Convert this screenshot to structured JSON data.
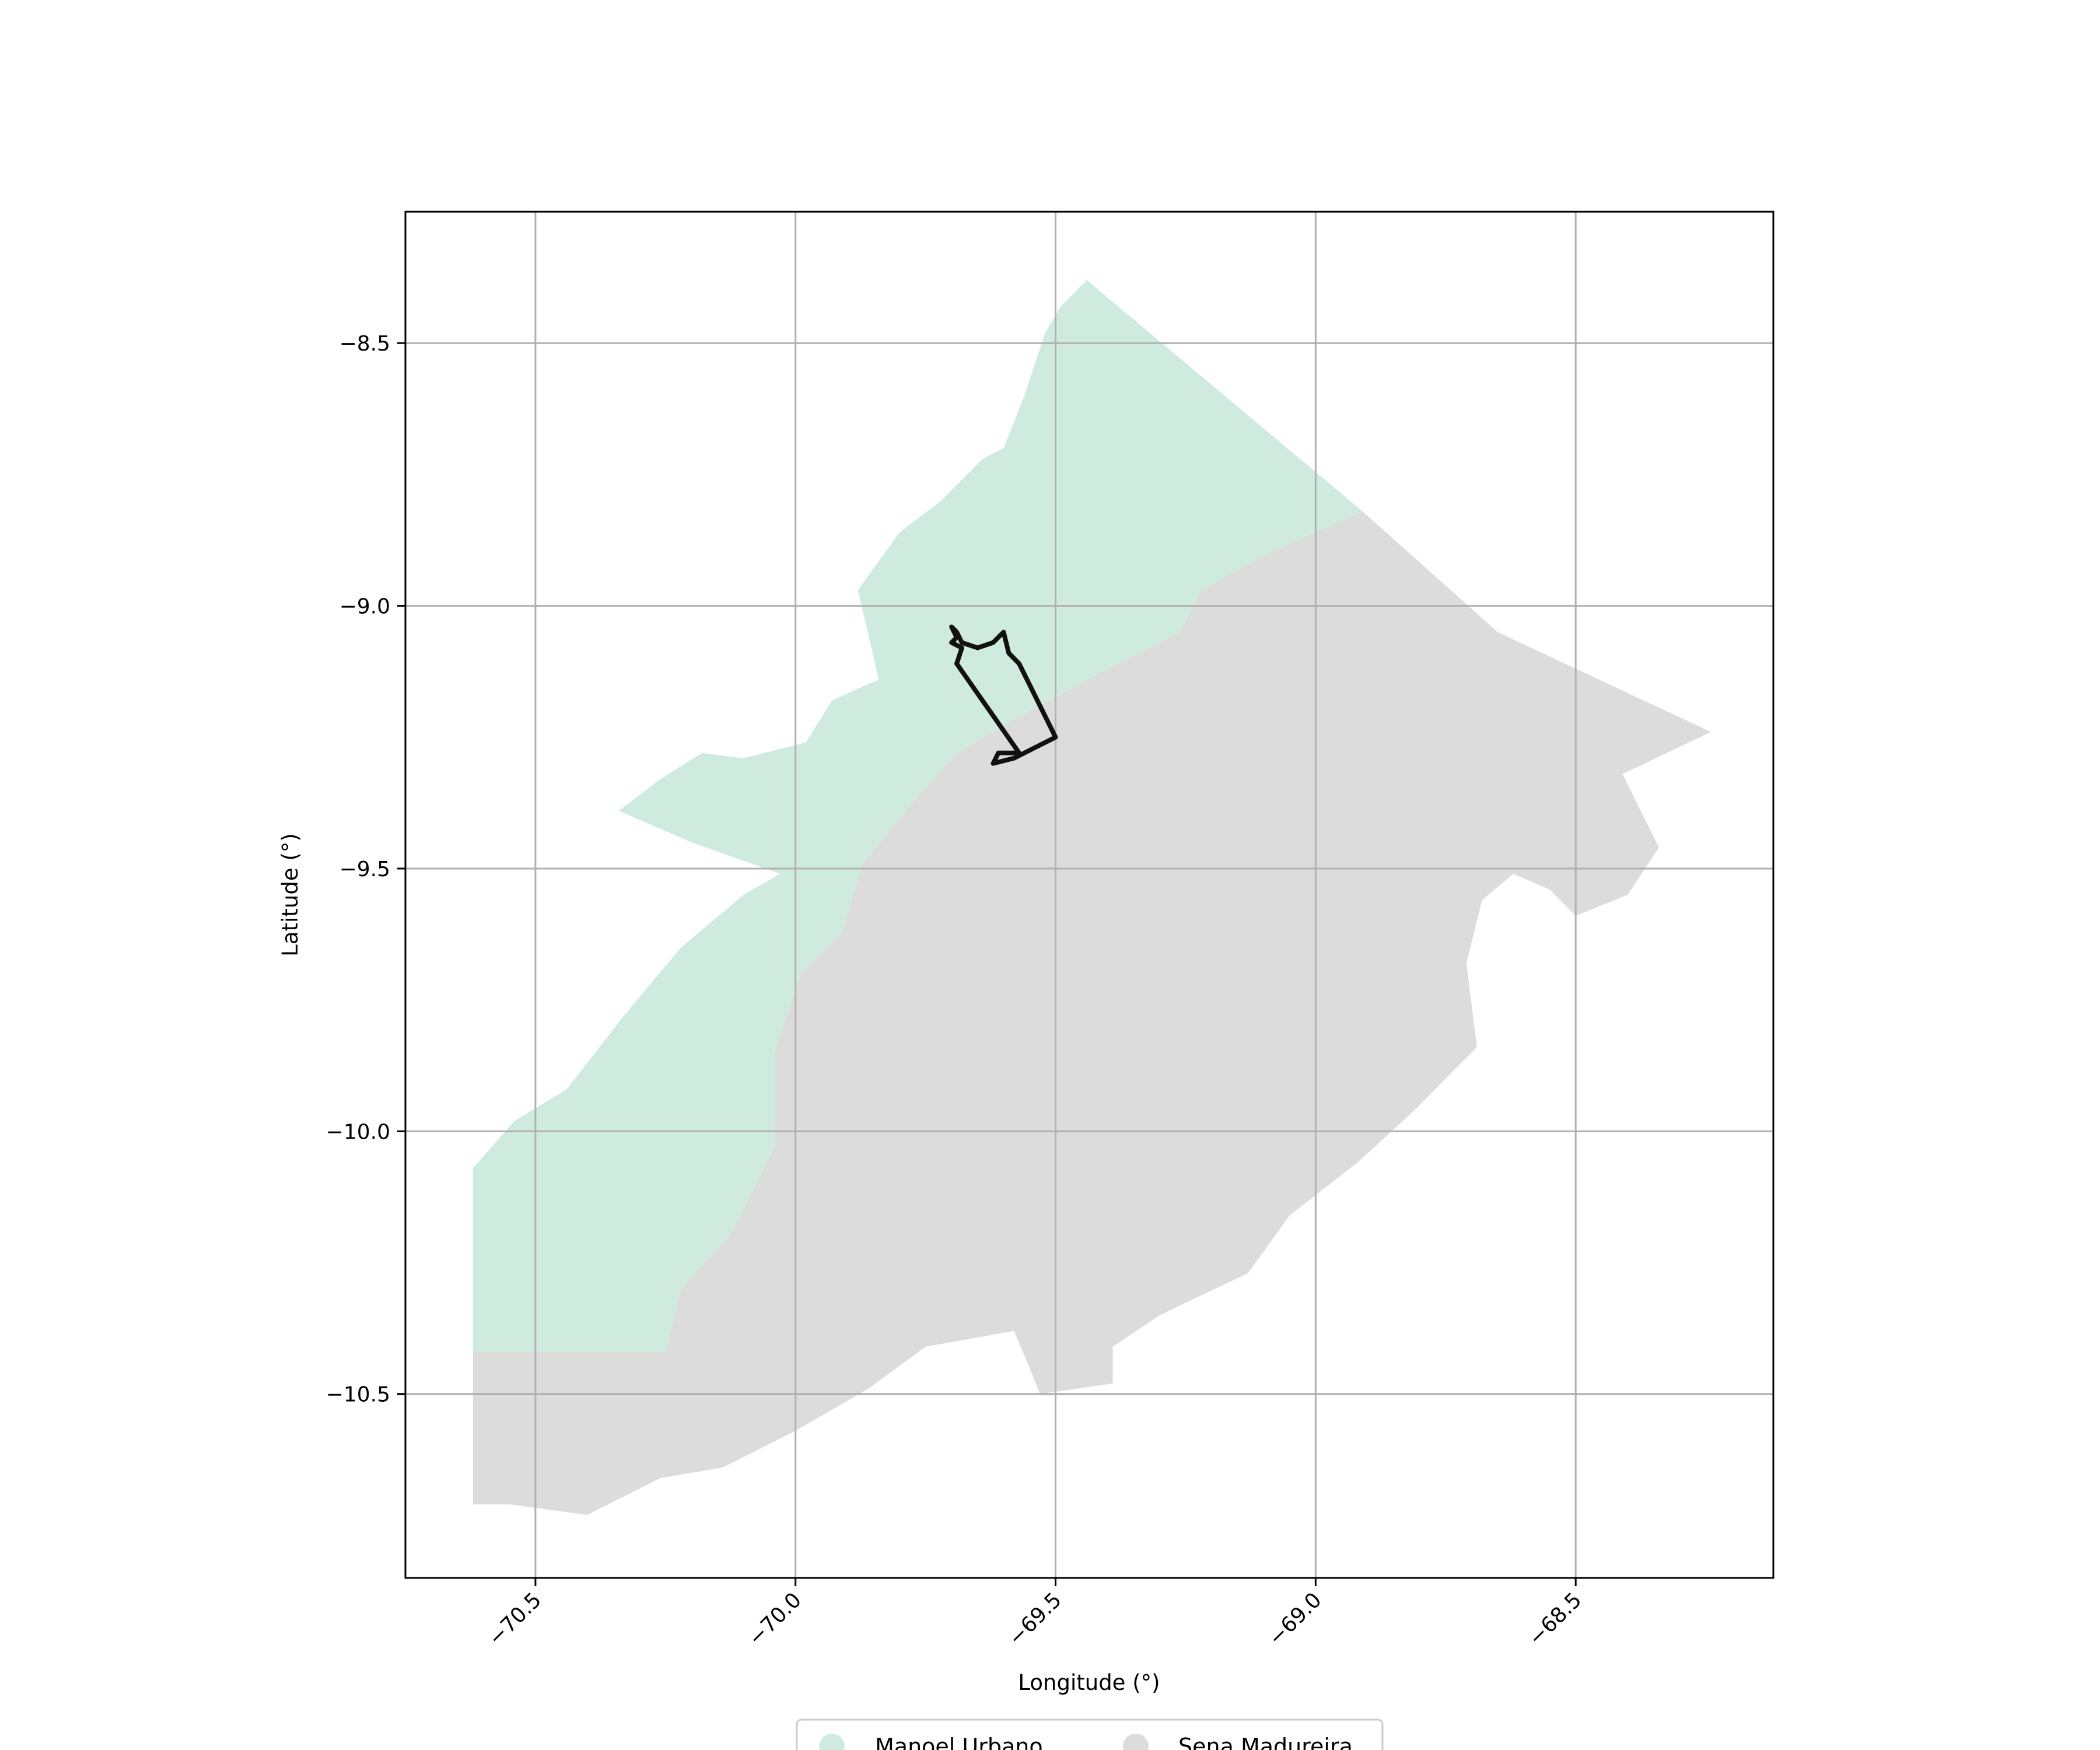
{
  "chart_data": {
    "type": "map",
    "xlabel": "Longitude (°)",
    "ylabel": "Latitude (°)",
    "xlim": [
      -70.75,
      -68.12
    ],
    "ylim": [
      -10.85,
      -8.25
    ],
    "x_ticks": [
      {
        "value": -70.5,
        "label": "−70.5"
      },
      {
        "value": -70.0,
        "label": "−70.0"
      },
      {
        "value": -69.5,
        "label": "−69.5"
      },
      {
        "value": -69.0,
        "label": "−69.0"
      },
      {
        "value": -68.5,
        "label": "−68.5"
      }
    ],
    "y_ticks": [
      {
        "value": -8.5,
        "label": "−8.5"
      },
      {
        "value": -9.0,
        "label": "−9.0"
      },
      {
        "value": -9.5,
        "label": "−9.5"
      },
      {
        "value": -10.0,
        "label": "−10.0"
      },
      {
        "value": -10.5,
        "label": "−10.5"
      }
    ],
    "grid": true,
    "legend_position": "bottom-center",
    "regions": [
      {
        "name": "Manoel Urbano",
        "color": "#cfebdf",
        "coordinates": [
          [
            -69.44,
            -8.38
          ],
          [
            -69.49,
            -8.43
          ],
          [
            -69.52,
            -8.48
          ],
          [
            -69.56,
            -8.6
          ],
          [
            -69.6,
            -8.7
          ],
          [
            -69.64,
            -8.72
          ],
          [
            -69.72,
            -8.8
          ],
          [
            -69.8,
            -8.86
          ],
          [
            -69.88,
            -8.97
          ],
          [
            -69.84,
            -9.14
          ],
          [
            -69.93,
            -9.18
          ],
          [
            -69.98,
            -9.26
          ],
          [
            -70.1,
            -9.29
          ],
          [
            -70.18,
            -9.28
          ],
          [
            -70.26,
            -9.33
          ],
          [
            -70.34,
            -9.39
          ],
          [
            -70.2,
            -9.45
          ],
          [
            -70.03,
            -9.51
          ],
          [
            -70.1,
            -9.55
          ],
          [
            -70.22,
            -9.65
          ],
          [
            -70.33,
            -9.78
          ],
          [
            -70.44,
            -9.92
          ],
          [
            -70.54,
            -9.98
          ],
          [
            -70.62,
            -10.07
          ],
          [
            -70.62,
            -10.42
          ],
          [
            -70.25,
            -10.42
          ],
          [
            -70.22,
            -10.3
          ],
          [
            -70.12,
            -10.19
          ],
          [
            -70.04,
            -10.03
          ],
          [
            -70.04,
            -9.85
          ],
          [
            -69.99,
            -9.7
          ],
          [
            -69.91,
            -9.62
          ],
          [
            -69.87,
            -9.49
          ],
          [
            -69.78,
            -9.38
          ],
          [
            -69.69,
            -9.28
          ],
          [
            -69.55,
            -9.2
          ],
          [
            -69.4,
            -9.12
          ],
          [
            -69.26,
            -9.05
          ],
          [
            -69.22,
            -8.97
          ],
          [
            -69.09,
            -8.9
          ],
          [
            -68.91,
            -8.82
          ]
        ]
      },
      {
        "name": "Sena Madureira",
        "color": "#dcdcdc",
        "coordinates": [
          [
            -68.91,
            -8.82
          ],
          [
            -68.65,
            -9.05
          ],
          [
            -68.24,
            -9.24
          ],
          [
            -68.41,
            -9.32
          ],
          [
            -68.34,
            -9.46
          ],
          [
            -68.4,
            -9.55
          ],
          [
            -68.5,
            -9.59
          ],
          [
            -68.55,
            -9.54
          ],
          [
            -68.62,
            -9.51
          ],
          [
            -68.68,
            -9.56
          ],
          [
            -68.71,
            -9.68
          ],
          [
            -68.69,
            -9.84
          ],
          [
            -68.81,
            -9.96
          ],
          [
            -68.92,
            -10.06
          ],
          [
            -69.05,
            -10.16
          ],
          [
            -69.13,
            -10.27
          ],
          [
            -69.3,
            -10.35
          ],
          [
            -69.39,
            -10.41
          ],
          [
            -69.39,
            -10.48
          ],
          [
            -69.53,
            -10.5
          ],
          [
            -69.55,
            -10.45
          ],
          [
            -69.58,
            -10.38
          ],
          [
            -69.75,
            -10.41
          ],
          [
            -69.86,
            -10.49
          ],
          [
            -70.0,
            -10.57
          ],
          [
            -70.14,
            -10.64
          ],
          [
            -70.26,
            -10.66
          ],
          [
            -70.4,
            -10.73
          ],
          [
            -70.55,
            -10.71
          ],
          [
            -70.62,
            -10.71
          ],
          [
            -70.62,
            -10.42
          ],
          [
            -70.25,
            -10.42
          ],
          [
            -70.22,
            -10.3
          ],
          [
            -70.12,
            -10.19
          ],
          [
            -70.04,
            -10.03
          ],
          [
            -70.04,
            -9.85
          ],
          [
            -69.99,
            -9.7
          ],
          [
            -69.91,
            -9.62
          ],
          [
            -69.87,
            -9.49
          ],
          [
            -69.78,
            -9.38
          ],
          [
            -69.69,
            -9.28
          ],
          [
            -69.55,
            -9.2
          ],
          [
            -69.4,
            -9.12
          ],
          [
            -69.26,
            -9.05
          ],
          [
            -69.22,
            -8.97
          ],
          [
            -69.09,
            -8.9
          ]
        ]
      }
    ],
    "outline": {
      "color": "#111111",
      "coordinates": [
        [
          -69.7,
          -9.04
        ],
        [
          -69.69,
          -9.05
        ],
        [
          -69.68,
          -9.07
        ],
        [
          -69.65,
          -9.08
        ],
        [
          -69.62,
          -9.07
        ],
        [
          -69.6,
          -9.05
        ],
        [
          -69.59,
          -9.09
        ],
        [
          -69.57,
          -9.11
        ],
        [
          -69.5,
          -9.25
        ],
        [
          -69.58,
          -9.29
        ],
        [
          -69.62,
          -9.3
        ],
        [
          -69.61,
          -9.28
        ],
        [
          -69.57,
          -9.28
        ],
        [
          -69.69,
          -9.11
        ],
        [
          -69.68,
          -9.08
        ],
        [
          -69.7,
          -9.07
        ],
        [
          -69.69,
          -9.06
        ],
        [
          -69.7,
          -9.04
        ]
      ]
    },
    "legend": [
      {
        "label": "Manoel Urbano",
        "color": "#cfebdf"
      },
      {
        "label": "Sena Madureira",
        "color": "#dcdcdc"
      }
    ]
  }
}
